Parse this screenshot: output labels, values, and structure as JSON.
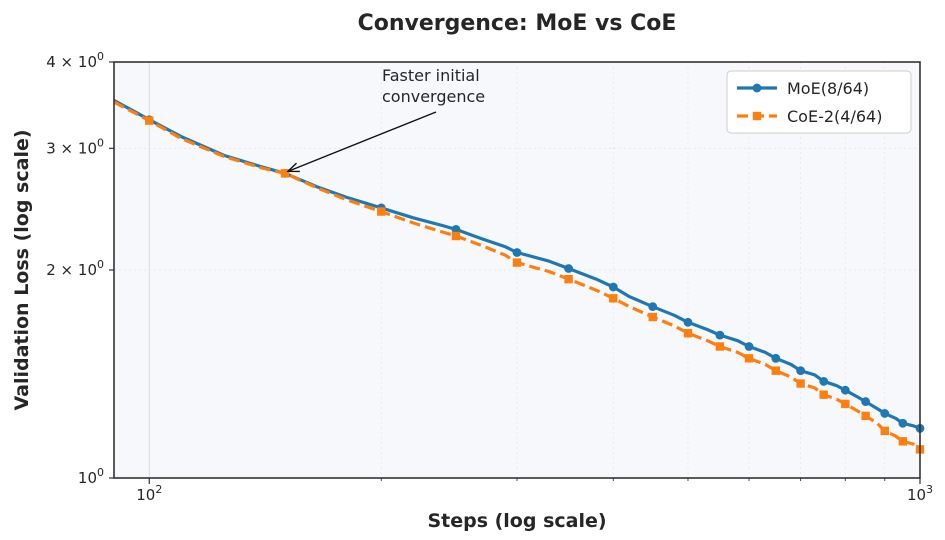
{
  "chart_data": {
    "type": "line",
    "title": "Convergence: MoE vs CoE",
    "xlabel": "Steps (log scale)",
    "ylabel": "Validation Loss (log scale)",
    "xscale": "log",
    "yscale": "log",
    "xlim": [
      90,
      1000
    ],
    "ylim": [
      1.0,
      4.0
    ],
    "x_ticks": [
      {
        "value": 100,
        "base": "10",
        "exp": "2"
      },
      {
        "value": 1000,
        "base": "10",
        "exp": "3"
      }
    ],
    "y_ticks": [
      {
        "value": 1,
        "base": "10",
        "exp": "0",
        "prefix": ""
      },
      {
        "value": 2,
        "base": "10",
        "exp": "0",
        "prefix": "2 × "
      },
      {
        "value": 3,
        "base": "10",
        "exp": "0",
        "prefix": "3 × "
      },
      {
        "value": 4,
        "base": "10",
        "exp": "0",
        "prefix": "4 × "
      }
    ],
    "grid": true,
    "legend_position": "top-right",
    "annotation": {
      "lines": [
        "Faster initial",
        "convergence"
      ],
      "target_x": 150,
      "target_y": 2.76
    },
    "series": [
      {
        "name": "MoE(8/64)",
        "color": "#1f77b4",
        "style": "solid",
        "marker": "circle",
        "x": [
          90,
          100,
          110,
          125,
          140,
          150,
          165,
          180,
          200,
          220,
          240,
          250,
          270,
          290,
          300,
          330,
          350,
          380,
          400,
          420,
          450,
          480,
          500,
          530,
          550,
          580,
          600,
          630,
          650,
          680,
          700,
          730,
          750,
          780,
          800,
          830,
          850,
          880,
          900,
          930,
          950,
          980,
          1000
        ],
        "y": [
          3.52,
          3.3,
          3.12,
          2.93,
          2.82,
          2.76,
          2.64,
          2.55,
          2.46,
          2.38,
          2.32,
          2.29,
          2.22,
          2.16,
          2.12,
          2.06,
          2.01,
          1.94,
          1.89,
          1.83,
          1.77,
          1.72,
          1.68,
          1.64,
          1.61,
          1.58,
          1.55,
          1.52,
          1.49,
          1.46,
          1.43,
          1.41,
          1.38,
          1.36,
          1.34,
          1.31,
          1.29,
          1.26,
          1.24,
          1.22,
          1.2,
          1.19,
          1.18
        ],
        "marker_x": [
          100,
          150,
          200,
          250,
          300,
          350,
          400,
          450,
          500,
          550,
          600,
          650,
          700,
          750,
          800,
          850,
          900,
          950,
          1000
        ],
        "marker_y": [
          3.3,
          2.76,
          2.46,
          2.29,
          2.12,
          2.01,
          1.89,
          1.77,
          1.68,
          1.61,
          1.55,
          1.49,
          1.43,
          1.38,
          1.34,
          1.29,
          1.24,
          1.2,
          1.18
        ]
      },
      {
        "name": "CoE-2(4/64)",
        "color": "#ff7f0e",
        "style": "dashed",
        "marker": "square",
        "x": [
          90,
          100,
          110,
          125,
          140,
          150,
          165,
          180,
          200,
          220,
          240,
          250,
          270,
          290,
          300,
          330,
          350,
          380,
          400,
          420,
          450,
          480,
          500,
          530,
          550,
          580,
          600,
          630,
          650,
          680,
          700,
          730,
          750,
          780,
          800,
          830,
          850,
          880,
          900,
          930,
          950,
          980,
          1000
        ],
        "y": [
          3.5,
          3.29,
          3.1,
          2.92,
          2.81,
          2.76,
          2.63,
          2.53,
          2.43,
          2.34,
          2.27,
          2.24,
          2.17,
          2.1,
          2.05,
          1.99,
          1.94,
          1.87,
          1.82,
          1.77,
          1.71,
          1.66,
          1.62,
          1.58,
          1.55,
          1.52,
          1.49,
          1.46,
          1.43,
          1.4,
          1.37,
          1.35,
          1.32,
          1.3,
          1.28,
          1.25,
          1.23,
          1.2,
          1.17,
          1.15,
          1.13,
          1.12,
          1.1
        ],
        "marker_x": [
          100,
          150,
          200,
          250,
          300,
          350,
          400,
          450,
          500,
          550,
          600,
          650,
          700,
          750,
          800,
          850,
          900,
          950,
          1000
        ],
        "marker_y": [
          3.29,
          2.76,
          2.43,
          2.24,
          2.05,
          1.94,
          1.82,
          1.71,
          1.62,
          1.55,
          1.49,
          1.43,
          1.37,
          1.32,
          1.28,
          1.23,
          1.17,
          1.13,
          1.1
        ]
      }
    ]
  }
}
